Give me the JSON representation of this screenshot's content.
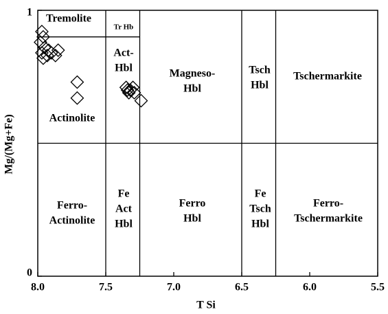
{
  "chart_data": {
    "type": "scatter",
    "x_label": "T Si",
    "y_label": "Mg/(Mg+Fe)",
    "xlim": [
      8.0,
      5.5
    ],
    "ylim": [
      0,
      1
    ],
    "xticks": [
      {
        "value": 8.0,
        "label": "8.0"
      },
      {
        "value": 7.5,
        "label": "7.5"
      },
      {
        "value": 7.0,
        "label": "7.0"
      },
      {
        "value": 6.5,
        "label": "6.5"
      },
      {
        "value": 6.0,
        "label": "6.0"
      },
      {
        "value": 5.5,
        "label": "5.5"
      }
    ],
    "yticks": [
      0,
      1
    ],
    "color": "#000000",
    "x": [
      7.97,
      7.96,
      7.98,
      7.95,
      7.92,
      7.97,
      7.93,
      7.9,
      7.85,
      7.96,
      7.87,
      7.71,
      7.71,
      7.34,
      7.32,
      7.35,
      7.3,
      7.33,
      7.29,
      7.24
    ],
    "values": [
      0.92,
      0.9,
      0.88,
      0.86,
      0.85,
      0.84,
      0.83,
      0.84,
      0.85,
      0.82,
      0.83,
      0.73,
      0.67,
      0.7,
      0.7,
      0.71,
      0.71,
      0.69,
      0.69,
      0.66
    ],
    "lines": [
      {
        "x": [
          7.5,
          7.5
        ],
        "y": [
          0,
          1
        ]
      },
      {
        "x": [
          7.25,
          7.25
        ],
        "y": [
          0,
          1
        ]
      },
      {
        "x": [
          6.5,
          6.5
        ],
        "y": [
          0,
          1
        ]
      },
      {
        "x": [
          6.25,
          6.25
        ],
        "y": [
          0,
          1
        ]
      },
      {
        "x": [
          8.0,
          5.5
        ],
        "y": [
          0.5,
          0.5
        ]
      },
      {
        "x": [
          8.0,
          7.25
        ],
        "y": [
          0.9,
          0.9
        ]
      }
    ],
    "annotations": [
      [
        "Tremolite"
      ],
      [
        "Tr Hb"
      ],
      [
        "Act-",
        "Hbl"
      ],
      [
        "Magneso-",
        "Hbl"
      ],
      [
        "Tsch",
        "Hbl"
      ],
      [
        "Tschermarkite"
      ],
      [
        "Actinolite"
      ],
      [
        "Ferro-",
        "Actinolite"
      ],
      [
        "Fe",
        "Act",
        "Hbl"
      ],
      [
        "Ferro",
        "Hbl"
      ],
      [
        "Fe",
        "Tsch",
        "Hbl"
      ],
      [
        "Ferro-",
        "Tschermarkite"
      ]
    ]
  }
}
